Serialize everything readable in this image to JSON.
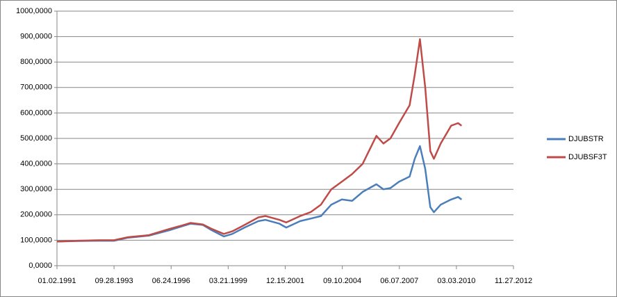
{
  "chart_data": {
    "type": "line",
    "x": [
      "1991-01-02",
      "1992-01-02",
      "1993-01-04",
      "1993-09-28",
      "1994-06-01",
      "1995-06-01",
      "1996-06-03",
      "1997-01-02",
      "1997-06-02",
      "1998-01-02",
      "1998-06-01",
      "1999-01-04",
      "1999-06-01",
      "2000-01-03",
      "2000-09-01",
      "2001-01-02",
      "2001-09-04",
      "2002-01-02",
      "2002-09-03",
      "2003-03-03",
      "2003-09-02",
      "2004-03-01",
      "2004-09-01",
      "2005-03-01",
      "2005-09-01",
      "2006-05-01",
      "2006-09-01",
      "2007-01-02",
      "2007-06-01",
      "2007-12-03",
      "2008-03-03",
      "2008-06-02",
      "2008-09-02",
      "2008-12-01",
      "2009-02-02",
      "2009-06-01",
      "2009-12-01",
      "2010-04-01",
      "2010-06-01"
    ],
    "series": [
      {
        "name": "DJUBSTR",
        "color": "#4a7ebb",
        "values": [
          95,
          97,
          98,
          98,
          110,
          118,
          140,
          155,
          165,
          160,
          140,
          115,
          125,
          150,
          175,
          180,
          165,
          150,
          175,
          185,
          195,
          240,
          260,
          255,
          290,
          320,
          300,
          305,
          330,
          350,
          420,
          470,
          380,
          230,
          210,
          240,
          260,
          270,
          260
        ]
      },
      {
        "name": "DJUBSF3T",
        "color": "#be4b48",
        "values": [
          95,
          98,
          100,
          100,
          112,
          120,
          145,
          158,
          168,
          162,
          145,
          125,
          135,
          160,
          190,
          195,
          180,
          170,
          195,
          210,
          240,
          300,
          330,
          360,
          400,
          510,
          480,
          500,
          560,
          630,
          750,
          890,
          700,
          450,
          420,
          480,
          550,
          560,
          550
        ]
      }
    ],
    "xlim": [
      "1991-01-02",
      "2012-11-27"
    ],
    "xticks": [
      {
        "value": "1991-01-02",
        "label": "01.02.1991"
      },
      {
        "value": "1993-09-28",
        "label": "09.28.1993"
      },
      {
        "value": "1996-06-24",
        "label": "06.24.1996"
      },
      {
        "value": "1999-03-21",
        "label": "03.21.1999"
      },
      {
        "value": "2001-12-15",
        "label": "12.15.2001"
      },
      {
        "value": "2004-09-10",
        "label": "09.10.2004"
      },
      {
        "value": "2007-06-07",
        "label": "06.07.2007"
      },
      {
        "value": "2010-03-03",
        "label": "03.03.2010"
      },
      {
        "value": "2012-11-27",
        "label": "11.27.2012"
      }
    ],
    "ylim": [
      0,
      1000
    ],
    "yticks": [
      {
        "value": 0,
        "label": "0,0000"
      },
      {
        "value": 100,
        "label": "100,0000"
      },
      {
        "value": 200,
        "label": "200,0000"
      },
      {
        "value": 300,
        "label": "300,0000"
      },
      {
        "value": 400,
        "label": "400,0000"
      },
      {
        "value": 500,
        "label": "500,0000"
      },
      {
        "value": 600,
        "label": "600,0000"
      },
      {
        "value": 700,
        "label": "700,0000"
      },
      {
        "value": 800,
        "label": "800,0000"
      },
      {
        "value": 900,
        "label": "900,0000"
      },
      {
        "value": 1000,
        "label": "1000,0000"
      }
    ],
    "grid": true,
    "legend": "right"
  }
}
